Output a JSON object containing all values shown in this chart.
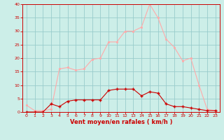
{
  "x": [
    0,
    1,
    2,
    3,
    4,
    5,
    6,
    7,
    8,
    9,
    10,
    11,
    12,
    13,
    14,
    15,
    16,
    17,
    18,
    19,
    20,
    21,
    22,
    23
  ],
  "rafales": [
    2.5,
    0.5,
    0.5,
    1.0,
    16.0,
    16.5,
    15.5,
    16.0,
    19.5,
    20.0,
    26.0,
    26.0,
    30.0,
    30.0,
    31.5,
    40.0,
    35.0,
    27.0,
    24.0,
    19.0,
    20.0,
    10.0,
    1.0,
    0.5
  ],
  "moyen": [
    0.0,
    0.0,
    0.0,
    3.0,
    2.0,
    4.0,
    4.5,
    4.5,
    4.5,
    4.5,
    8.0,
    8.5,
    8.5,
    8.5,
    6.0,
    7.5,
    7.0,
    3.0,
    2.0,
    2.0,
    1.5,
    1.0,
    0.5,
    0.5
  ],
  "rafales_color": "#ffaaaa",
  "moyen_color": "#cc0000",
  "bg_color": "#cceee8",
  "grid_color": "#99cccc",
  "axis_color": "#cc0000",
  "tick_color": "#cc0000",
  "xlabel": "Vent moyen/en rafales ( km/h )",
  "ylim": [
    0,
    40
  ],
  "yticks": [
    0,
    5,
    10,
    15,
    20,
    25,
    30,
    35,
    40
  ],
  "xticks": [
    0,
    1,
    2,
    3,
    4,
    5,
    6,
    7,
    8,
    9,
    10,
    11,
    12,
    13,
    14,
    15,
    16,
    17,
    18,
    19,
    20,
    21,
    22,
    23
  ]
}
